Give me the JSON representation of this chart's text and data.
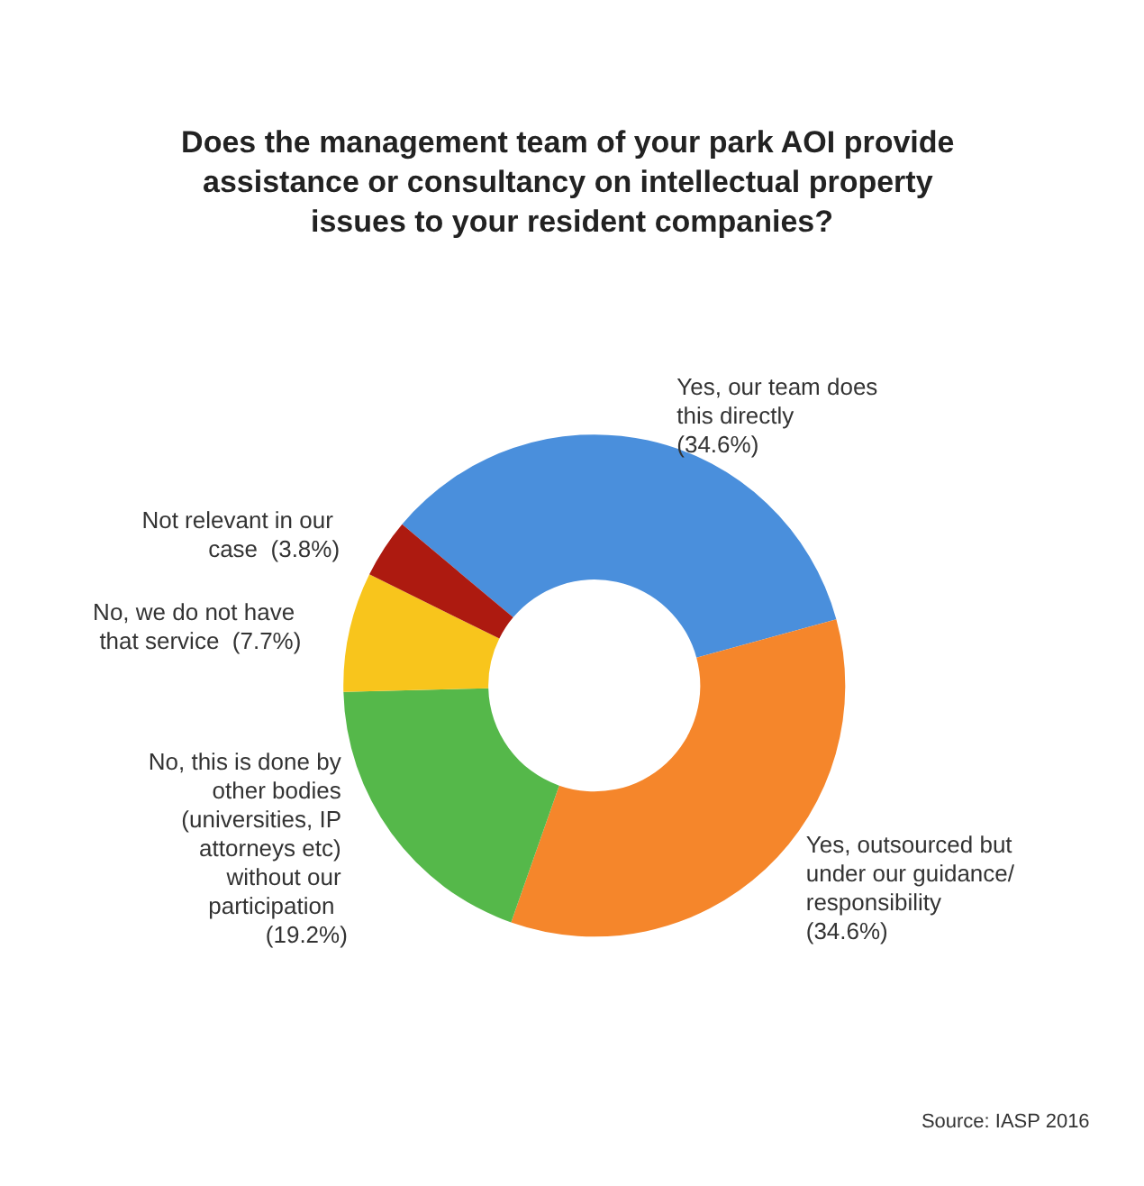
{
  "chart_data": {
    "type": "donut",
    "title": "Does the management team of your park AOI provide assistance or consultancy on intellectual property issues to your resident companies?",
    "categories": [
      "Yes, our team does this directly",
      "Yes, outsourced but under our guidance/responsibility",
      "No, this is done by other bodies (universities, IP attorneys etc) without our participation",
      "No, we do not have that service",
      "Not relevant in our case"
    ],
    "values": [
      34.6,
      34.6,
      19.2,
      7.7,
      3.8
    ],
    "colors": [
      "#4a8fdc",
      "#f5862b",
      "#55b84a",
      "#f8c51c",
      "#ad1a10"
    ],
    "value_labels": [
      "(34.6%)",
      "(34.6%)",
      "(19.2%)",
      "(7.7%)",
      "(3.8%)"
    ],
    "annotations": [
      "Source: IASP 2016"
    ]
  }
}
